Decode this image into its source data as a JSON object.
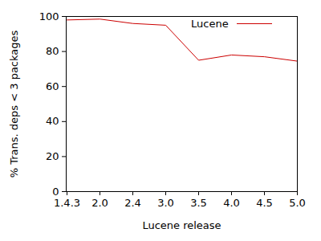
{
  "chart_data": {
    "type": "line",
    "x_label": "Lucene release",
    "y_label": "% Trans. deps < 3 packages",
    "categories": [
      "1.4.3",
      "2.0",
      "2.4",
      "3.0",
      "3.5",
      "4.0",
      "4.5",
      "5.0"
    ],
    "series": [
      {
        "name": "Lucene",
        "color": "#cc0000",
        "values": [
          98,
          98.5,
          96,
          95,
          75,
          78,
          77,
          74.5
        ]
      }
    ],
    "ylim": [
      0,
      100
    ],
    "yticks": [
      0,
      20,
      40,
      60,
      80,
      100
    ],
    "legend": "top-right",
    "grid": false
  }
}
